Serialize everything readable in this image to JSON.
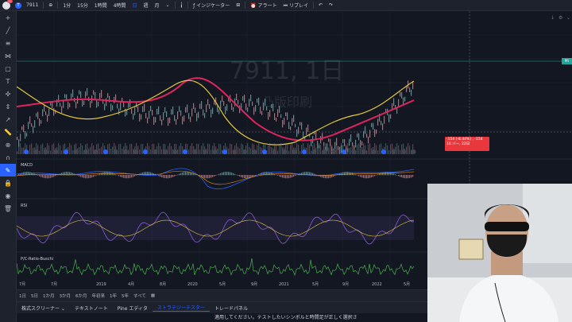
{
  "topbar": {
    "symbol": "7911",
    "badge": "11",
    "intervals": [
      "1分",
      "15分",
      "1時間",
      "4時間",
      "日",
      "週",
      "月"
    ],
    "indicators_label": "インジケーター",
    "alert_label": "アラート",
    "replay_label": "リプレイ"
  },
  "chart": {
    "watermark_symbol": "7911, 1日",
    "watermark_name": "凸版印刷",
    "price_tag": "PR",
    "crosshair_line1": "-154 (-8.44%) , -154",
    "crosshair_line2": "16 バー, 22日",
    "panes": {
      "macd": "MACD",
      "rsi": "RSI",
      "pc": "P/C-Ratio-Buschi"
    },
    "time_labels": [
      "7月",
      "7月",
      "2019",
      "4月",
      "8月",
      "2020",
      "5月",
      "9月",
      "2021",
      "5月",
      "9月",
      "2022",
      "5月"
    ]
  },
  "timebar": {
    "ranges": [
      "1日",
      "5日",
      "1か月",
      "3か月",
      "6か月",
      "年初来",
      "1年",
      "5年",
      "すべて"
    ]
  },
  "bottombar": {
    "tabs": [
      "株式スクリーナー",
      "テキストノート",
      "Pine エディタ",
      "ストラテジーテスター",
      "トレードパネル"
    ],
    "active_tab": "ストラテジーテスター"
  },
  "subtitle": "適用してください。テストしたいシンボルと時間足が正しく選択さ",
  "colors": {
    "bg": "#131722",
    "accent": "#2962ff",
    "up": "#26a69a",
    "down": "#ef5350",
    "ma_long": "#e0245e",
    "ma_mid": "#e2c83a"
  }
}
